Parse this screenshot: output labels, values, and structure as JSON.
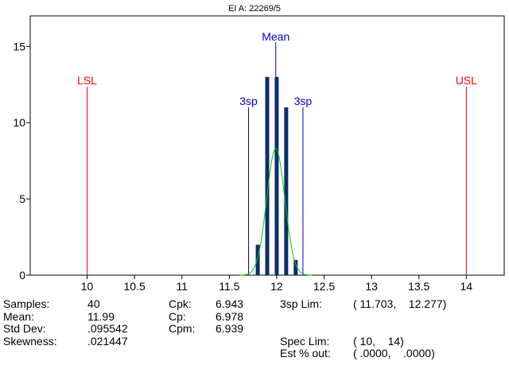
{
  "chart_data": {
    "type": "bar",
    "title": "EI A: 22269/5",
    "xlabel": "",
    "ylabel": "",
    "xlim": [
      9.4,
      14.4
    ],
    "ylim": [
      0,
      17
    ],
    "x_ticks": [
      10,
      10.5,
      11,
      11.5,
      12,
      12.5,
      13,
      13.5,
      14
    ],
    "x_tick_labels": [
      "10",
      "10.5",
      "11",
      "11.5",
      "12",
      "12.5",
      "13",
      "13.5",
      "14"
    ],
    "y_ticks": [
      0,
      5,
      10,
      15
    ],
    "y_tick_labels": [
      "0",
      "5",
      "10",
      "15"
    ],
    "bins": [
      {
        "x": 11.8,
        "count": 2
      },
      {
        "x": 11.9,
        "count": 13
      },
      {
        "x": 12.0,
        "count": 13
      },
      {
        "x": 12.1,
        "count": 11
      },
      {
        "x": 12.2,
        "count": 1
      }
    ],
    "normal_curve": {
      "mean": 11.99,
      "std_dev": 0.095542,
      "peak": 8.3
    },
    "reference_lines": [
      {
        "label": "LSL",
        "x": 10,
        "color": "#ff0000"
      },
      {
        "label": "3sp",
        "x": 11.703,
        "color": "#0000cc"
      },
      {
        "label": "Mean",
        "x": 11.99,
        "color": "#0000cc"
      },
      {
        "label": "3sp",
        "x": 12.277,
        "color": "#0000cc"
      },
      {
        "label": "USL",
        "x": 14,
        "color": "#ff0000"
      }
    ],
    "grid": false,
    "colors": {
      "bar": "#0d2d6b",
      "curve": "#00cc00",
      "spec": "#ff0000",
      "stat": "#0000cc"
    }
  },
  "stats": {
    "col1_labels": [
      "Samples:",
      "Mean:",
      "Std Dev:",
      "Skewness:"
    ],
    "col1_values": [
      "40",
      "11.99",
      ".095542",
      ".021447"
    ],
    "col2_labels": [
      "Cpk:",
      "Cp:",
      "Cpm:"
    ],
    "col2_values": [
      "6.943",
      "6.978",
      "6.939"
    ],
    "col3_labels": [
      "3sp Lim:",
      "",
      "",
      "Spec Lim:",
      "Est % out:"
    ],
    "col3_values": [
      "( 11.703,    12.277)",
      "",
      "",
      "( 10,    14)",
      "( .0000,    .0000)"
    ]
  }
}
